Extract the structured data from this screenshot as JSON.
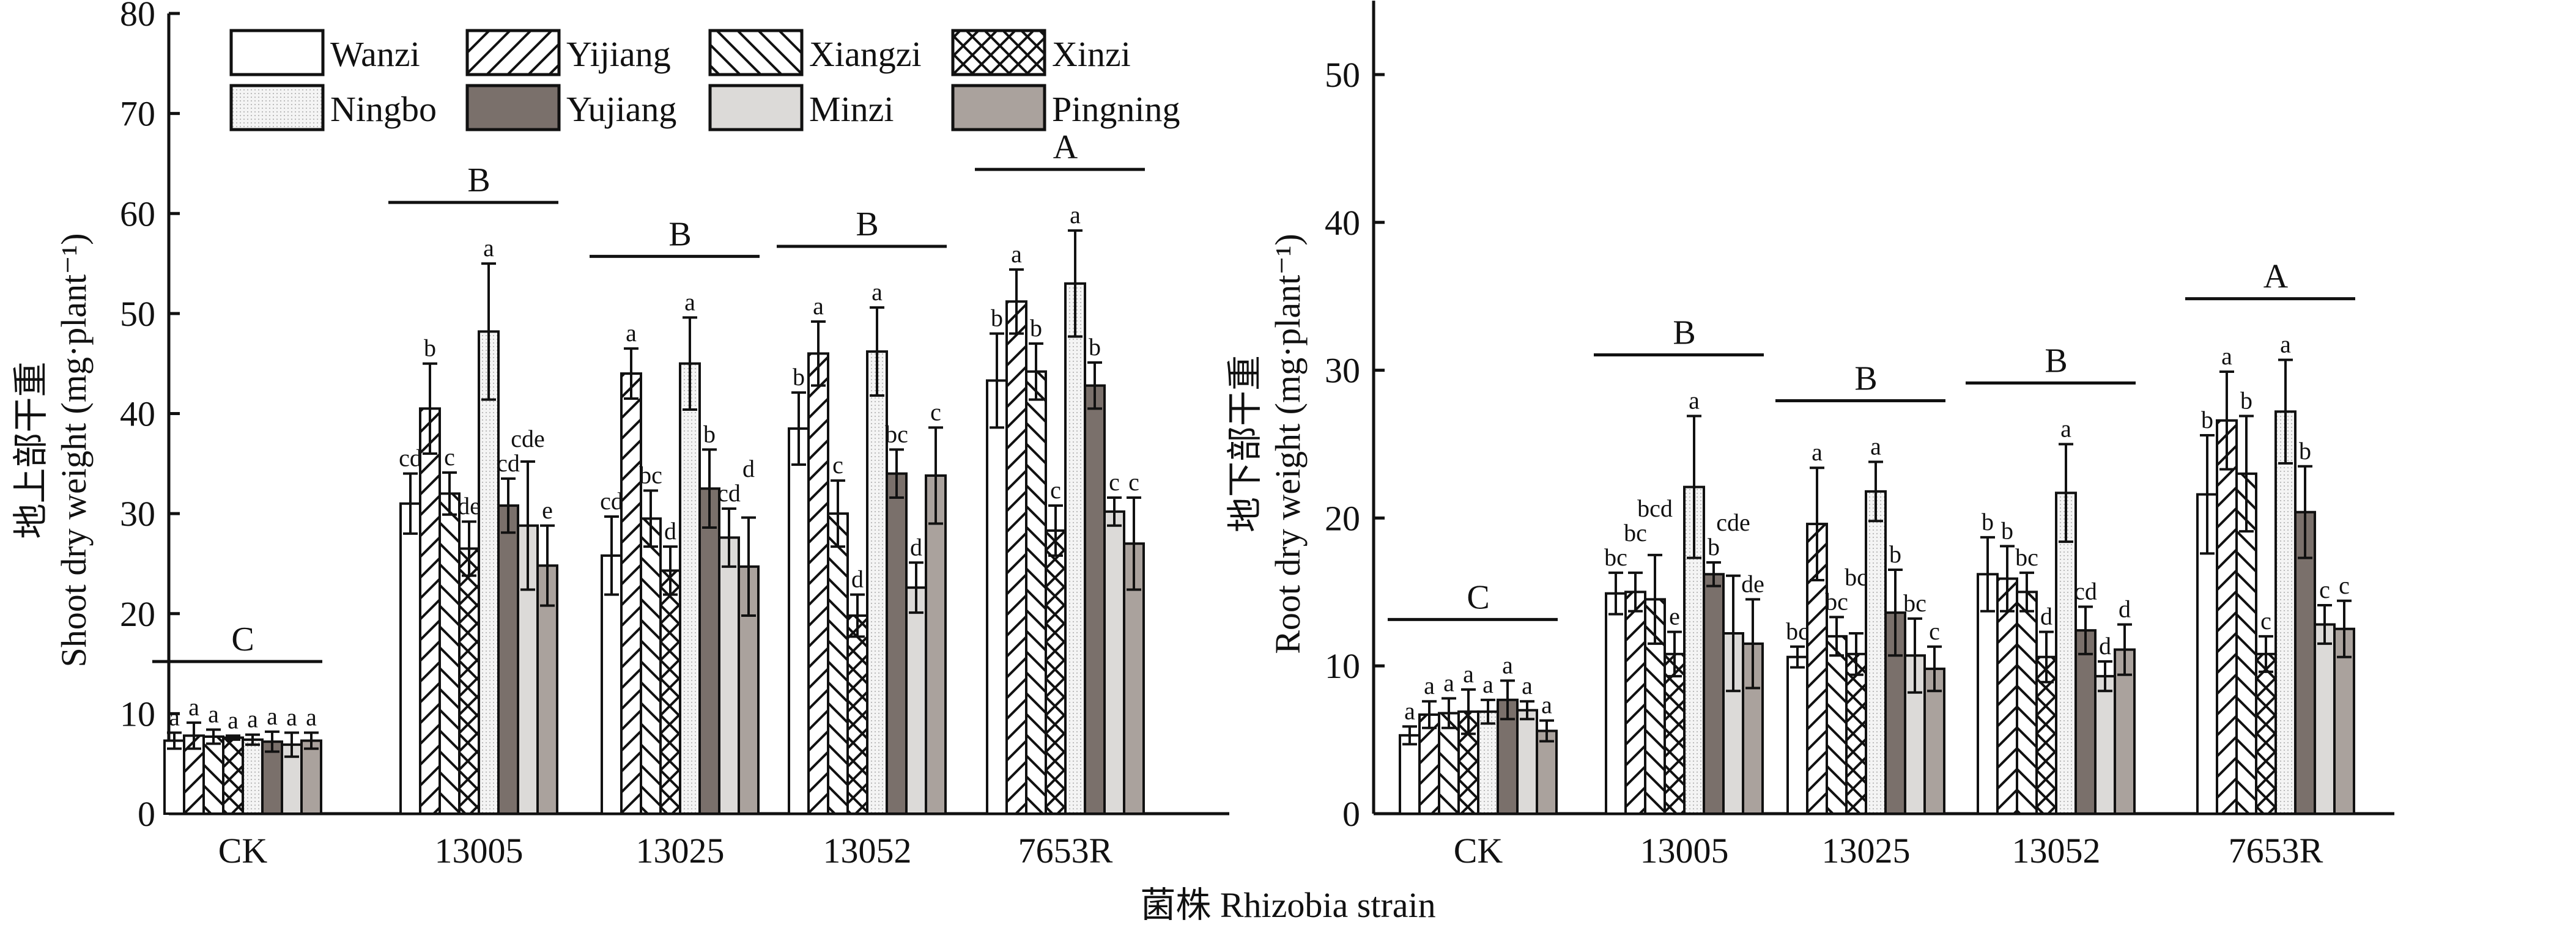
{
  "chart_data": [
    {
      "type": "bar",
      "ylabel_cn": "地上部干重",
      "ylabel": "Shoot dry weight (mg·plant⁻¹)",
      "ylim": [
        0,
        80
      ],
      "yticks": [
        0,
        10,
        20,
        30,
        40,
        50,
        60,
        70,
        80
      ],
      "categories": [
        "CK",
        "13005",
        "13025",
        "13052",
        "7653R"
      ],
      "group_letters": [
        "C",
        "B",
        "B",
        "B",
        "A"
      ],
      "series": [
        {
          "name": "Wanzi",
          "values": [
            7.3,
            31.0,
            25.8,
            38.5,
            43.3
          ],
          "errors": [
            0.8,
            3.0,
            3.9,
            3.6,
            4.7
          ],
          "letters": [
            "a",
            "cd",
            "cd",
            "b",
            "b"
          ]
        },
        {
          "name": "Yijiang",
          "values": [
            7.8,
            40.5,
            44.0,
            46.0,
            51.2
          ],
          "errors": [
            1.3,
            4.5,
            2.5,
            3.2,
            3.2
          ],
          "letters": [
            "a",
            "b",
            "a",
            "a",
            "a"
          ]
        },
        {
          "name": "Xiangzi",
          "values": [
            7.7,
            32.0,
            29.5,
            30.0,
            44.2
          ],
          "errors": [
            0.7,
            2.1,
            2.8,
            3.3,
            2.8
          ],
          "letters": [
            "a",
            "c",
            "bc",
            "c",
            "b"
          ]
        },
        {
          "name": "Xinzi",
          "values": [
            7.6,
            26.5,
            24.3,
            19.8,
            28.3
          ],
          "errors": [
            0.2,
            2.7,
            2.4,
            2.1,
            2.5
          ],
          "letters": [
            "a",
            "de",
            "d",
            "d",
            "c"
          ]
        },
        {
          "name": "Ningbo",
          "values": [
            7.4,
            48.2,
            45.0,
            46.2,
            53.0
          ],
          "errors": [
            0.5,
            6.8,
            4.6,
            4.4,
            5.3
          ],
          "letters": [
            "a",
            "a",
            "a",
            "a",
            "a"
          ]
        },
        {
          "name": "Yujiang",
          "values": [
            7.2,
            30.8,
            32.5,
            34.0,
            42.8
          ],
          "errors": [
            1.0,
            2.7,
            3.9,
            2.4,
            2.3
          ],
          "letters": [
            "a",
            "cd",
            "b",
            "bc",
            "b"
          ]
        },
        {
          "name": "Minzi",
          "values": [
            6.9,
            28.8,
            27.6,
            22.6,
            30.2
          ],
          "errors": [
            1.2,
            6.4,
            2.9,
            2.5,
            1.4
          ],
          "letters": [
            "a",
            "cde",
            "cd",
            "d",
            "c"
          ]
        },
        {
          "name": "Pingning",
          "values": [
            7.3,
            24.8,
            24.7,
            33.8,
            27.0
          ],
          "errors": [
            0.8,
            4.0,
            4.9,
            4.8,
            4.6
          ],
          "letters": [
            "a",
            "e",
            "d",
            "c",
            "c"
          ]
        }
      ]
    },
    {
      "type": "bar",
      "ylabel_cn": "地下部干重",
      "ylabel": "Root dry weight (mg·plant⁻¹)",
      "ylim": [
        0,
        55
      ],
      "yticks": [
        0,
        10,
        20,
        30,
        40,
        50
      ],
      "categories": [
        "CK",
        "13005",
        "13025",
        "13052",
        "7653R"
      ],
      "group_letters": [
        "C",
        "B",
        "B",
        "B",
        "A"
      ],
      "series": [
        {
          "name": "Wanzi",
          "values": [
            5.3,
            14.9,
            10.6,
            16.2,
            21.6
          ],
          "errors": [
            0.6,
            1.4,
            0.7,
            2.5,
            4.0
          ],
          "letters": [
            "a",
            "bc",
            "bc",
            "b",
            "b"
          ]
        },
        {
          "name": "Yijiang",
          "values": [
            6.7,
            15.0,
            19.6,
            15.9,
            26.6
          ],
          "errors": [
            0.9,
            1.3,
            3.8,
            2.2,
            3.3
          ],
          "letters": [
            "a",
            "bc",
            "a",
            "b",
            "a"
          ]
        },
        {
          "name": "Xiangzi",
          "values": [
            6.8,
            14.5,
            12.0,
            15.0,
            23.0
          ],
          "errors": [
            1.0,
            3.0,
            1.3,
            1.3,
            3.9
          ],
          "letters": [
            "a",
            "bcd",
            "bc",
            "bc",
            "b"
          ]
        },
        {
          "name": "Xinzi",
          "values": [
            6.9,
            10.8,
            10.8,
            10.6,
            10.8
          ],
          "errors": [
            1.5,
            1.5,
            1.4,
            1.7,
            1.2
          ],
          "letters": [
            "a",
            "e",
            "bc",
            "d",
            "c"
          ]
        },
        {
          "name": "Ningbo",
          "values": [
            6.9,
            22.1,
            21.8,
            21.7,
            27.2
          ],
          "errors": [
            0.8,
            4.8,
            2.0,
            3.3,
            3.5
          ],
          "letters": [
            "a",
            "a",
            "a",
            "a",
            "a"
          ]
        },
        {
          "name": "Yujiang",
          "values": [
            7.7,
            16.2,
            13.6,
            12.4,
            20.4
          ],
          "errors": [
            1.3,
            0.8,
            2.9,
            1.6,
            3.1
          ],
          "letters": [
            "a",
            "b",
            "b",
            "cd",
            "b"
          ]
        },
        {
          "name": "Minzi",
          "values": [
            7.0,
            12.2,
            10.7,
            9.3,
            12.8
          ],
          "errors": [
            0.6,
            3.9,
            2.5,
            1.0,
            1.3
          ],
          "letters": [
            "a",
            "cde",
            "bc",
            "d",
            "c"
          ]
        },
        {
          "name": "Pingning",
          "values": [
            5.6,
            11.5,
            9.8,
            11.1,
            12.5
          ],
          "errors": [
            0.7,
            3.0,
            1.5,
            1.7,
            1.9
          ],
          "letters": [
            "a",
            "de",
            "c",
            "d",
            "c"
          ]
        }
      ]
    }
  ],
  "xlabel": "菌株 Rhizobia strain",
  "legend": {
    "placement": "top-left of left panel",
    "items": [
      "Wanzi",
      "Yijiang",
      "Xiangzi",
      "Xinzi",
      "Ningbo",
      "Yujiang",
      "Minzi",
      "Pingning"
    ]
  },
  "series_styles": {
    "Wanzi": {
      "fill": "#ffffff",
      "pattern": "none"
    },
    "Yijiang": {
      "fill": "#ffffff",
      "pattern": "forward-diagonal"
    },
    "Xiangzi": {
      "fill": "#ffffff",
      "pattern": "backward-diagonal"
    },
    "Xinzi": {
      "fill": "#ffffff",
      "pattern": "crosshatch"
    },
    "Ningbo": {
      "fill": "#f1f1f1",
      "pattern": "dots"
    },
    "Yujiang": {
      "fill": "#7a706b",
      "pattern": "none"
    },
    "Minzi": {
      "fill": "#dcdad8",
      "pattern": "none"
    },
    "Pingning": {
      "fill": "#aaa29d",
      "pattern": "none"
    }
  }
}
